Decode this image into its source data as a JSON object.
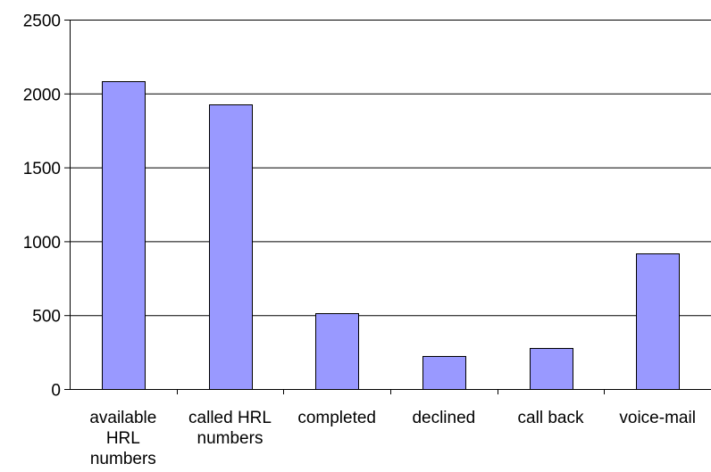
{
  "chart_data": {
    "type": "bar",
    "categories": [
      [
        "available",
        "HRL",
        "numbers"
      ],
      [
        "called HRL",
        "numbers"
      ],
      [
        "completed"
      ],
      [
        "declined"
      ],
      [
        "call back"
      ],
      [
        "voice-mail"
      ]
    ],
    "values": [
      2085,
      1925,
      515,
      225,
      278,
      918
    ],
    "ylim": [
      0,
      2500
    ],
    "yticks": [
      "0",
      "500",
      "1000",
      "1500",
      "2000",
      "2500"
    ],
    "grid": true,
    "legend": "none",
    "colors": {
      "bar_fill": "#9999ff",
      "bar_stroke": "#000000",
      "grid": "#000000",
      "axis": "#000000"
    }
  }
}
